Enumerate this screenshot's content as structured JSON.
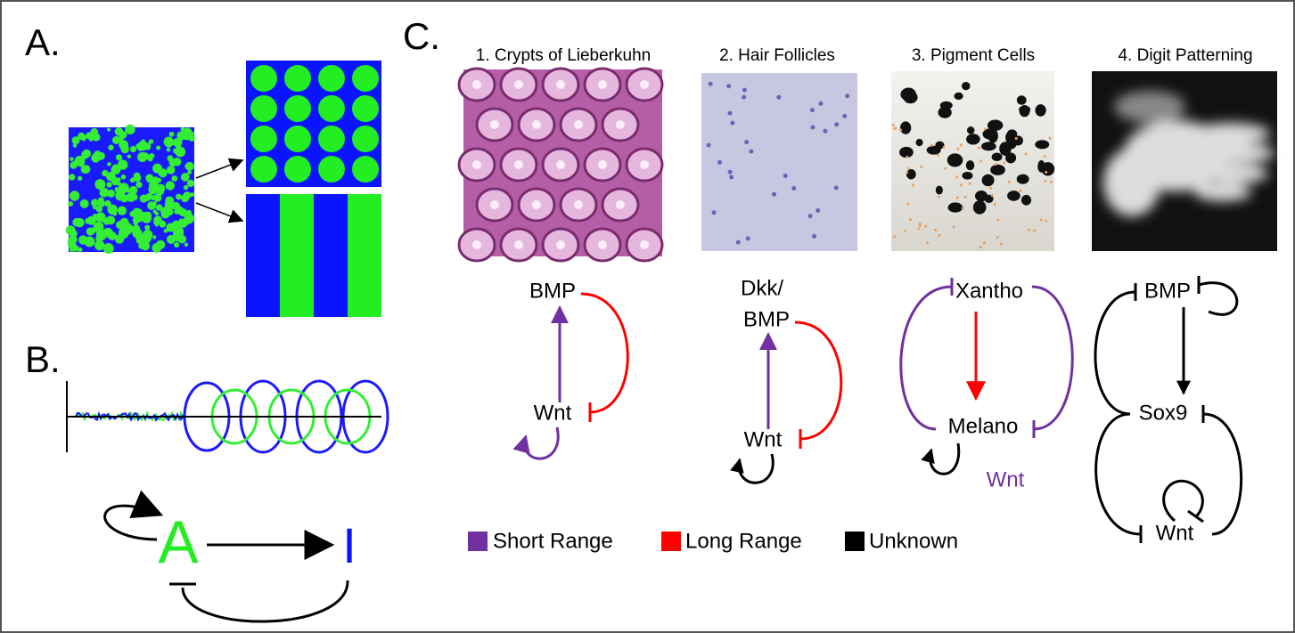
{
  "panel_labels": [
    "A.",
    "B.",
    "C."
  ],
  "panel_b": {
    "activator": "A",
    "inhibitor": "I"
  },
  "panel_c": {
    "columns": [
      {
        "title": "1. Crypts of Lieberkuhn",
        "nodes": [
          "BMP",
          "Wnt"
        ]
      },
      {
        "title": "2. Hair Follicles",
        "nodes": [
          "Dkk/",
          "BMP",
          "Wnt"
        ]
      },
      {
        "title": "3. Pigment Cells",
        "nodes": [
          "Xantho",
          "Melano",
          "Wnt"
        ]
      },
      {
        "title": "4. Digit Patterning",
        "nodes": [
          "BMP",
          "Sox9",
          "Wnt"
        ]
      }
    ],
    "legend": [
      "Short Range",
      "Long Range",
      "Unknown"
    ]
  }
}
